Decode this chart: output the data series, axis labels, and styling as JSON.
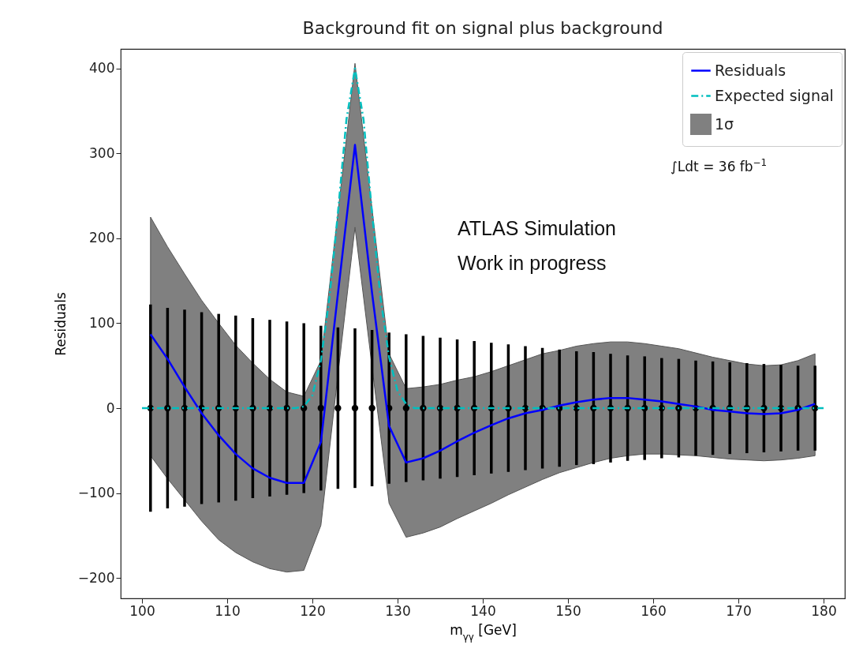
{
  "chart_data": {
    "type": "line",
    "title": "Background fit on signal plus background",
    "xlabel": "m$_{γγ}$ [GeV]",
    "ylabel": "Residuals",
    "x": [
      101,
      103,
      105,
      107,
      109,
      111,
      113,
      115,
      117,
      119,
      121,
      123,
      125,
      127,
      129,
      131,
      133,
      135,
      137,
      139,
      141,
      143,
      145,
      147,
      149,
      151,
      153,
      155,
      157,
      159,
      161,
      163,
      165,
      167,
      169,
      171,
      173,
      175,
      177,
      179
    ],
    "series": [
      {
        "name": "Residuals",
        "color": "#0000ff",
        "line_style": "solid",
        "values": [
          87,
          58,
          25,
          -6,
          -32,
          -54,
          -71,
          -82,
          -88,
          -88,
          -40,
          135,
          310,
          136,
          -21,
          -64,
          -59,
          -50,
          -39,
          -29,
          -20,
          -12,
          -6,
          -2,
          3,
          7,
          10,
          12,
          12,
          10,
          8,
          5,
          2,
          -2,
          -4,
          -6,
          -7,
          -6,
          -2,
          5
        ],
        "lower": [
          -56,
          -83,
          -108,
          -133,
          -155,
          -170,
          -181,
          -189,
          -193,
          -191,
          -138,
          40,
          213,
          49,
          -112,
          -152,
          -147,
          -140,
          -130,
          -121,
          -112,
          -102,
          -93,
          -84,
          -76,
          -70,
          -64,
          -59,
          -56,
          -54,
          -54,
          -55,
          -56,
          -58,
          -60,
          -61,
          -62,
          -61,
          -59,
          -56
        ],
        "upper": [
          225,
          190,
          158,
          127,
          100,
          74,
          53,
          34,
          19,
          14,
          56,
          230,
          406,
          235,
          64,
          23,
          25,
          28,
          33,
          37,
          43,
          50,
          57,
          64,
          68,
          73,
          76,
          78,
          78,
          76,
          73,
          70,
          65,
          60,
          56,
          52,
          50,
          51,
          56,
          64
        ]
      },
      {
        "name": "Expected signal",
        "color": "#00bfbf",
        "line_style": "dashdot",
        "x": [
          100,
          118,
          119,
          120,
          121,
          122,
          123,
          124,
          125,
          126,
          127,
          128,
          129,
          130,
          131,
          132,
          180
        ],
        "values": [
          0,
          0,
          2,
          15,
          56,
          130,
          230,
          340,
          400,
          340,
          230,
          130,
          60,
          20,
          5,
          0,
          0
        ]
      },
      {
        "type": "scatter",
        "color": "#000000",
        "marker": "circle",
        "values": [
          0,
          0,
          0,
          0,
          0,
          0,
          0,
          0,
          0,
          0,
          0,
          0,
          0,
          0,
          0,
          0,
          0,
          0,
          0,
          0,
          0,
          0,
          0,
          0,
          0,
          0,
          0,
          0,
          0,
          0,
          0,
          0,
          0,
          0,
          0,
          0,
          0,
          0,
          0,
          0
        ],
        "errors": [
          122,
          118,
          116,
          113,
          111,
          109,
          106,
          104,
          102,
          100,
          97,
          95,
          94,
          92,
          89,
          87,
          85,
          83,
          81,
          79,
          77,
          75,
          73,
          71,
          69,
          67,
          66,
          64,
          62,
          61,
          59,
          58,
          56,
          55,
          54,
          53,
          52,
          51,
          50,
          50
        ]
      }
    ],
    "xlim": [
      97.5,
      182.5
    ],
    "xticks": [
      100,
      110,
      120,
      130,
      140,
      150,
      160,
      170,
      180
    ],
    "ylim": [
      -224,
      423
    ],
    "yticks": [
      {
        "value": -200,
        "label": "−200"
      },
      {
        "value": -100,
        "label": "−100"
      },
      0,
      100,
      200,
      300,
      400
    ],
    "grid": false,
    "legend": "top right",
    "annotations": [
      "1σ",
      "∫Ldt = 36 fb$^{−1}$",
      "ATLAS Simulation",
      "Work in progress"
    ]
  }
}
